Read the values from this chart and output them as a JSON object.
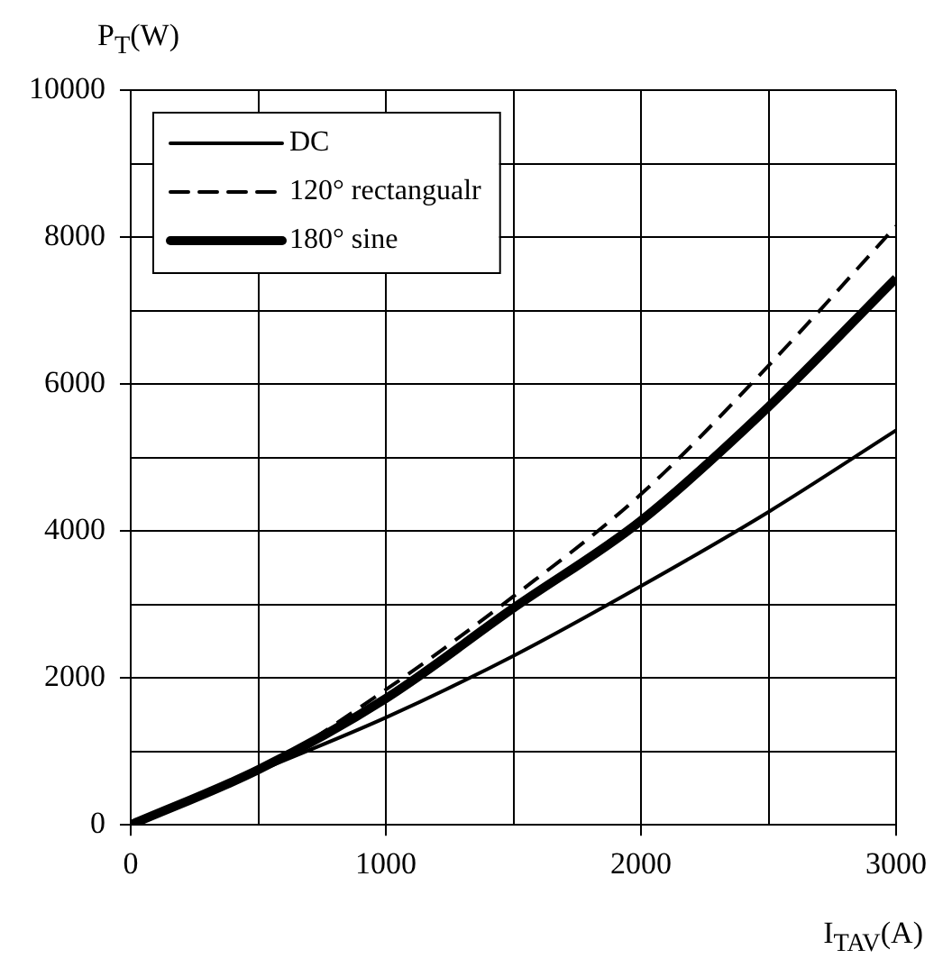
{
  "chart_data": {
    "type": "line",
    "xlabel": "I$_{TAV}$(A)",
    "ylabel": "P$_{T}$(W)",
    "x": [
      0,
      500,
      1000,
      1500,
      2000,
      2500,
      3000
    ],
    "series": [
      {
        "name": "DC",
        "color": "#000000",
        "line_style": "solid",
        "values": [
          0,
          730,
          1460,
          2300,
          3250,
          4260,
          5370
        ]
      },
      {
        "name": "120° rectangualr",
        "color": "#000000",
        "line_style": "dashed",
        "values": [
          0,
          730,
          1840,
          3110,
          4500,
          6250,
          8150
        ]
      },
      {
        "name": "180° sine",
        "color": "#000000",
        "line_style": "solid",
        "values": [
          0,
          750,
          1720,
          2950,
          4140,
          5690,
          7440
        ]
      }
    ],
    "xlim": [
      0,
      3000
    ],
    "xticks": [
      0,
      1000,
      2000,
      3000
    ],
    "ylim": [
      0,
      10000
    ],
    "yticks": [
      0,
      2000,
      4000,
      6000,
      8000,
      10000
    ],
    "grid": true,
    "legend": "top left",
    "marker": "none"
  }
}
